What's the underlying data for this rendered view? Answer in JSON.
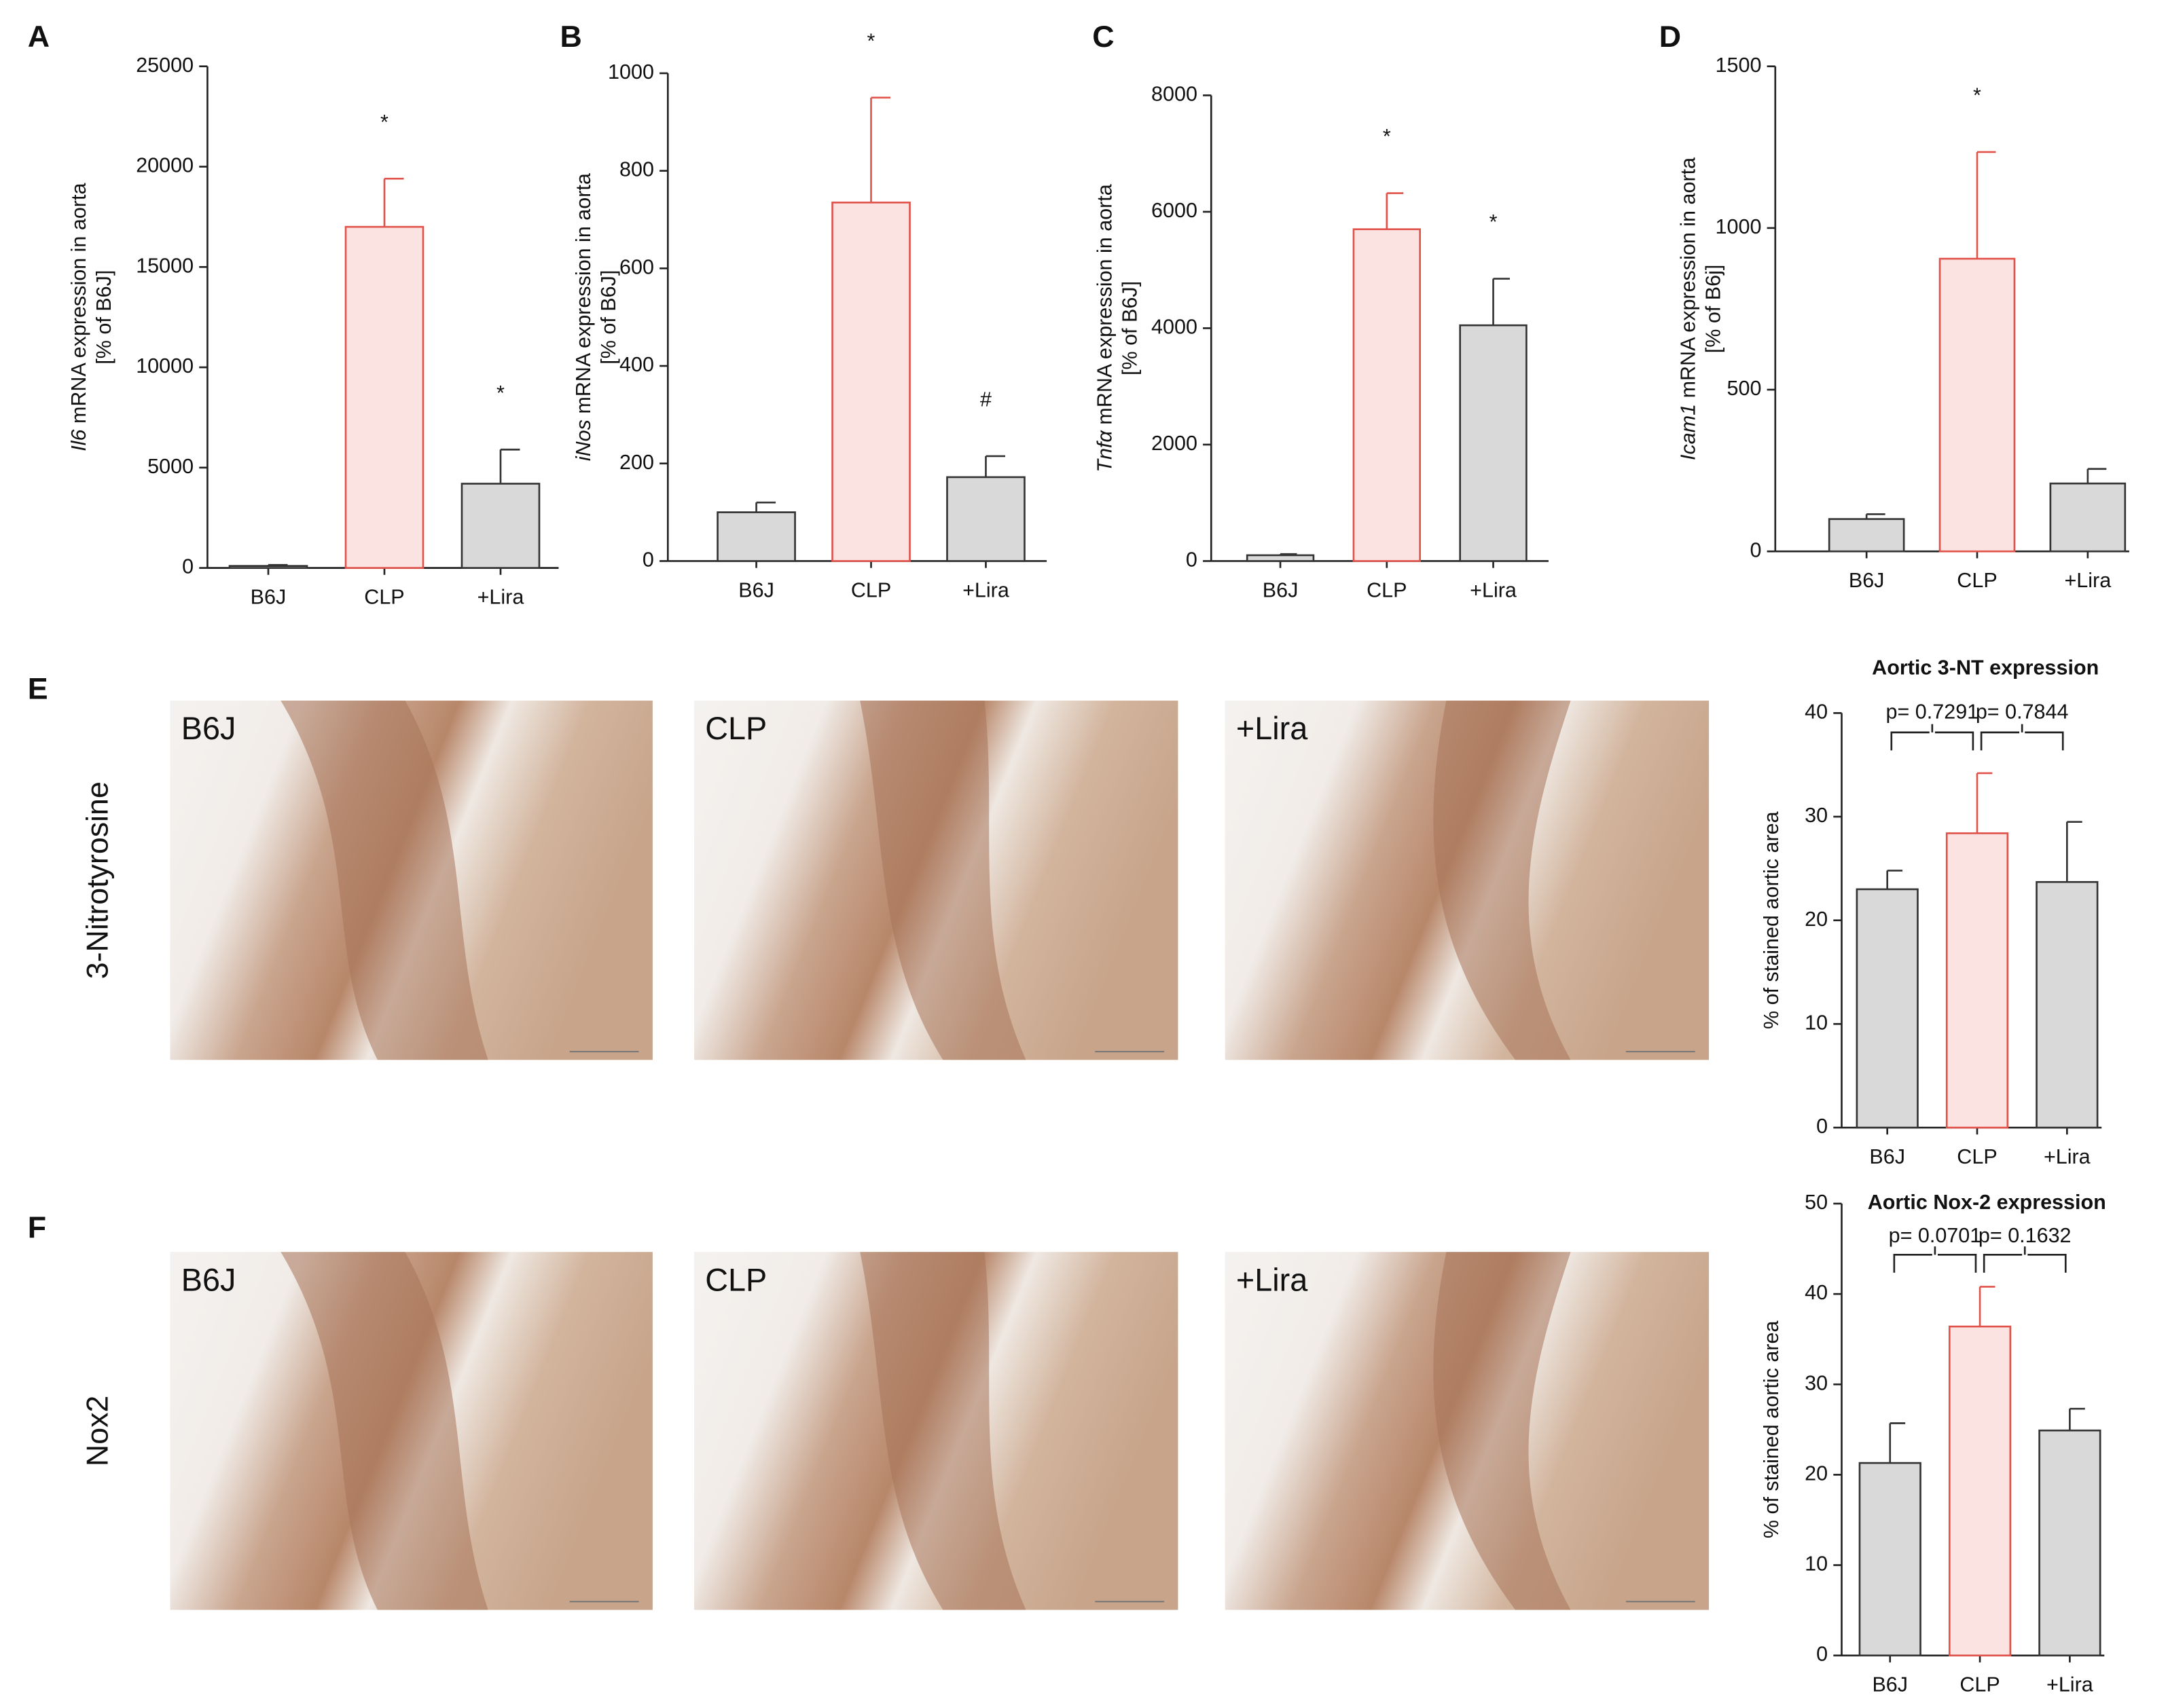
{
  "chart_data": [
    {
      "type": "bar",
      "panel": "A",
      "ylabel_italic": "Il6",
      "ylabel": " mRNA expression in aorta",
      "ylabel2": "[% of B6J]",
      "categories": [
        "B6J",
        "CLP",
        "+Lira"
      ],
      "values": [
        100,
        17000,
        4200
      ],
      "errors": [
        50,
        2400,
        1700
      ],
      "colors": [
        "#d9d9d9",
        "#fbe3e1",
        "#d9d9d9"
      ],
      "edgecolors": [
        "#333333",
        "#e0524a",
        "#333333"
      ],
      "annotations": [
        null,
        "*",
        "*"
      ],
      "ylim": [
        0,
        25000
      ],
      "yticks": [
        0,
        5000,
        10000,
        15000,
        20000,
        25000
      ]
    },
    {
      "type": "bar",
      "panel": "B",
      "ylabel_italic": "iNos",
      "ylabel": " mRNA expression in aorta",
      "ylabel2": "[% of B6J]",
      "categories": [
        "B6J",
        "CLP",
        "+Lira"
      ],
      "values": [
        100,
        735,
        172
      ],
      "errors": [
        20,
        215,
        43
      ],
      "colors": [
        "#d9d9d9",
        "#fbe3e1",
        "#d9d9d9"
      ],
      "edgecolors": [
        "#333333",
        "#e0524a",
        "#333333"
      ],
      "annotations": [
        null,
        "*",
        "#"
      ],
      "ylim": [
        0,
        1000
      ],
      "yticks": [
        0,
        200,
        400,
        600,
        800,
        1000
      ]
    },
    {
      "type": "bar",
      "panel": "C",
      "ylabel_italic": "Tnfα",
      "ylabel": " mRNA expression in aorta",
      "ylabel2": "[% of B6J]",
      "categories": [
        "B6J",
        "CLP",
        "+Lira"
      ],
      "values": [
        100,
        5700,
        4050
      ],
      "errors": [
        20,
        620,
        800
      ],
      "colors": [
        "#d9d9d9",
        "#fbe3e1",
        "#d9d9d9"
      ],
      "edgecolors": [
        "#333333",
        "#e0524a",
        "#333333"
      ],
      "annotations": [
        null,
        "*",
        "*"
      ],
      "ylim": [
        0,
        8000
      ],
      "yticks": [
        0,
        2000,
        4000,
        6000,
        8000
      ]
    },
    {
      "type": "bar",
      "panel": "D",
      "ylabel_italic": "Icam1",
      "ylabel": " mRNA expression in aorta",
      "ylabel2": "[% of B6j]",
      "categories": [
        "B6J",
        "CLP",
        "+Lira"
      ],
      "values": [
        100,
        905,
        210
      ],
      "errors": [
        15,
        330,
        45
      ],
      "colors": [
        "#d9d9d9",
        "#fbe3e1",
        "#d9d9d9"
      ],
      "edgecolors": [
        "#333333",
        "#e0524a",
        "#333333"
      ],
      "annotations": [
        null,
        "*",
        null
      ],
      "ylim": [
        0,
        1500
      ],
      "yticks": [
        0,
        500,
        1000,
        1500
      ]
    },
    {
      "type": "bar",
      "panel": "E",
      "title": "Aortic 3-NT expression",
      "ylabel": "% of stained aortic area",
      "categories": [
        "B6J",
        "CLP",
        "+Lira"
      ],
      "values": [
        23,
        28.4,
        23.7
      ],
      "errors": [
        1.8,
        5.8,
        5.8
      ],
      "colors": [
        "#d9d9d9",
        "#fbe3e1",
        "#d9d9d9"
      ],
      "edgecolors": [
        "#333333",
        "#e0524a",
        "#333333"
      ],
      "p_values": [
        "p= 0.7291",
        "p= 0.7844"
      ],
      "ylim": [
        0,
        40
      ],
      "yticks": [
        0,
        10,
        20,
        30,
        40
      ]
    },
    {
      "type": "bar",
      "panel": "F",
      "title": "Aortic Nox-2 expression",
      "ylabel": "% of stained aortic area",
      "categories": [
        "B6J",
        "CLP",
        "+Lira"
      ],
      "values": [
        21.3,
        36.4,
        24.9
      ],
      "errors": [
        4.4,
        4.4,
        2.4
      ],
      "colors": [
        "#d9d9d9",
        "#fbe3e1",
        "#d9d9d9"
      ],
      "edgecolors": [
        "#333333",
        "#e0524a",
        "#333333"
      ],
      "p_values": [
        "p= 0.0701",
        "p= 0.1632"
      ],
      "ylim": [
        0,
        50
      ],
      "yticks": [
        0,
        10,
        20,
        30,
        40,
        50
      ]
    }
  ],
  "micrographs": [
    {
      "label": "3-Nitrotyrosine",
      "panels": [
        "B6J",
        "CLP",
        "+Lira"
      ]
    },
    {
      "label": "Nox2",
      "panels": [
        "B6J",
        "CLP",
        "+Lira"
      ]
    }
  ]
}
